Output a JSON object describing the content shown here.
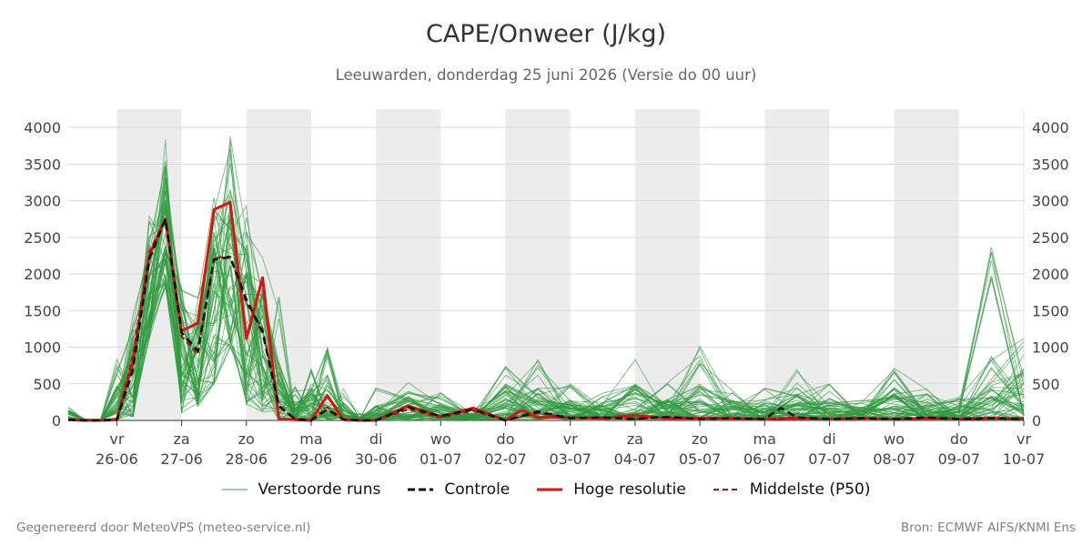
{
  "header": {
    "title": "CAPE/Onweer (J/kg)",
    "subtitle": "Leeuwarden, donderdag 25 juni 2026 (Versie do 00 uur)"
  },
  "footer": {
    "left": "Gegenereerd door MeteoVPS (meteo-service.nl)",
    "right": "Bron: ECMWF AIFS/KNMI Ens"
  },
  "legend": {
    "items": [
      {
        "label": "Verstoorde runs",
        "color": "#3aa348"
      },
      {
        "label": "Controle",
        "color": "#111111"
      },
      {
        "label": "Hoge resolutie",
        "color": "#dd1111"
      },
      {
        "label": "Middelste (P50)",
        "color": "#aa1111"
      }
    ]
  },
  "chart_data": {
    "type": "line",
    "title": "CAPE/Onweer (J/kg)",
    "xlabel": "",
    "ylabel": "",
    "ylim": [
      0,
      4250
    ],
    "xlim": [
      -0.75,
      14
    ],
    "yticks": [
      0,
      500,
      1000,
      1500,
      2000,
      2500,
      3000,
      3500,
      4000
    ],
    "xticks": [
      {
        "day": "vr",
        "date": "26-06"
      },
      {
        "day": "za",
        "date": "27-06"
      },
      {
        "day": "zo",
        "date": "28-06"
      },
      {
        "day": "ma",
        "date": "29-06"
      },
      {
        "day": "di",
        "date": "30-06"
      },
      {
        "day": "wo",
        "date": "01-07"
      },
      {
        "day": "do",
        "date": "02-07"
      },
      {
        "day": "vr",
        "date": "03-07"
      },
      {
        "day": "za",
        "date": "04-07"
      },
      {
        "day": "zo",
        "date": "05-07"
      },
      {
        "day": "ma",
        "date": "06-07"
      },
      {
        "day": "di",
        "date": "07-07"
      },
      {
        "day": "wo",
        "date": "08-07"
      },
      {
        "day": "do",
        "date": "09-07"
      },
      {
        "day": "vr",
        "date": "10-07"
      }
    ],
    "shaded_days": [
      0,
      2,
      4,
      6,
      8,
      10,
      12
    ],
    "grid": true,
    "legend_position": "bottom",
    "series": [
      {
        "name": "Controle",
        "x": [
          -0.75,
          -0.5,
          -0.25,
          0,
          0.25,
          0.5,
          0.75,
          1,
          1.25,
          1.5,
          1.75,
          2,
          2.25,
          2.5,
          2.75,
          3,
          3.25,
          3.5,
          3.75,
          4,
          4.5,
          5,
          5.5,
          6,
          6.5,
          7,
          7.5,
          8,
          8.5,
          9,
          9.5,
          10,
          10.25,
          10.5,
          11,
          11.5,
          12,
          12.5,
          13,
          13.5,
          14
        ],
        "y": [
          10,
          0,
          0,
          10,
          700,
          2200,
          2750,
          1200,
          950,
          2200,
          2230,
          1650,
          1200,
          200,
          20,
          0,
          150,
          10,
          0,
          0,
          180,
          60,
          150,
          0,
          120,
          30,
          40,
          20,
          50,
          20,
          30,
          20,
          170,
          40,
          20,
          30,
          20,
          40,
          20,
          30,
          20
        ]
      },
      {
        "name": "Hoge resolutie",
        "x": [
          -0.75,
          -0.5,
          -0.25,
          0,
          0.25,
          0.5,
          0.75,
          1,
          1.25,
          1.5,
          1.75,
          2,
          2.25,
          2.5,
          2.75,
          3,
          3.25,
          3.5,
          3.75,
          4,
          4.5,
          5,
          5.5,
          6,
          6.25,
          6.5,
          7,
          7.5,
          8,
          8.5,
          9,
          9.5,
          10,
          10.5,
          11,
          11.5,
          12,
          12.5,
          13,
          13.5,
          14
        ],
        "y": [
          10,
          0,
          0,
          10,
          800,
          2250,
          2750,
          1220,
          1330,
          2880,
          2980,
          1120,
          1950,
          20,
          10,
          0,
          340,
          10,
          0,
          0,
          200,
          50,
          170,
          0,
          140,
          40,
          40,
          30,
          70,
          30,
          30,
          30,
          20,
          30,
          20,
          30,
          20,
          30,
          20,
          30,
          20
        ]
      },
      {
        "name": "Middelste (P50)",
        "x": [
          -0.75,
          -0.5,
          -0.25,
          0,
          0.25,
          0.5,
          0.75,
          1,
          1.25,
          1.5,
          1.75,
          2,
          2.25,
          2.5,
          2.75,
          3,
          3.25,
          3.5,
          3.75,
          4,
          4.5,
          5,
          5.5,
          6,
          6.5,
          7,
          7.5,
          8,
          8.5,
          9,
          9.5,
          10,
          10.5,
          11,
          11.5,
          12,
          12.5,
          13,
          13.5,
          14
        ],
        "y": [
          10,
          0,
          0,
          10,
          900,
          2300,
          2750,
          1150,
          900,
          2220,
          2240,
          1600,
          1250,
          200,
          20,
          0,
          180,
          10,
          0,
          0,
          150,
          40,
          130,
          0,
          100,
          30,
          40,
          20,
          40,
          20,
          30,
          20,
          40,
          20,
          30,
          20,
          30,
          20,
          30,
          20
        ]
      }
    ],
    "ensemble": {
      "name": "Verstoorde runs",
      "members": 50,
      "x": [
        -0.75,
        -0.5,
        -0.25,
        0,
        0.25,
        0.5,
        0.75,
        1,
        1.25,
        1.5,
        1.75,
        2,
        2.25,
        2.5,
        2.75,
        3,
        3.25,
        3.5,
        3.75,
        4,
        4.5,
        5,
        5.5,
        6,
        6.5,
        7,
        7.5,
        8,
        8.5,
        9,
        9.5,
        10,
        10.5,
        11,
        11.5,
        12,
        12.5,
        13,
        13.5,
        14
      ],
      "spread_low": [
        0,
        0,
        0,
        0,
        50,
        1100,
        1800,
        100,
        200,
        500,
        1000,
        200,
        100,
        0,
        0,
        0,
        0,
        0,
        0,
        0,
        0,
        0,
        0,
        0,
        0,
        0,
        0,
        0,
        0,
        0,
        0,
        0,
        0,
        0,
        0,
        0,
        0,
        0,
        0,
        0
      ],
      "spread_high": [
        200,
        20,
        20,
        850,
        1500,
        3000,
        4250,
        2000,
        1900,
        3400,
        3950,
        3200,
        2300,
        1870,
        500,
        950,
        1040,
        450,
        100,
        500,
        660,
        400,
        200,
        760,
        860,
        500,
        400,
        910,
        520,
        1040,
        450,
        460,
        710,
        500,
        300,
        740,
        500,
        330,
        2520,
        1200
      ],
      "typical_max": [
        150,
        10,
        10,
        500,
        1200,
        2600,
        3500,
        1700,
        1500,
        2900,
        3300,
        2500,
        1800,
        800,
        250,
        500,
        650,
        250,
        50,
        200,
        400,
        250,
        100,
        500,
        450,
        300,
        250,
        500,
        300,
        500,
        300,
        300,
        450,
        300,
        200,
        450,
        300,
        200,
        900,
        700
      ]
    }
  }
}
